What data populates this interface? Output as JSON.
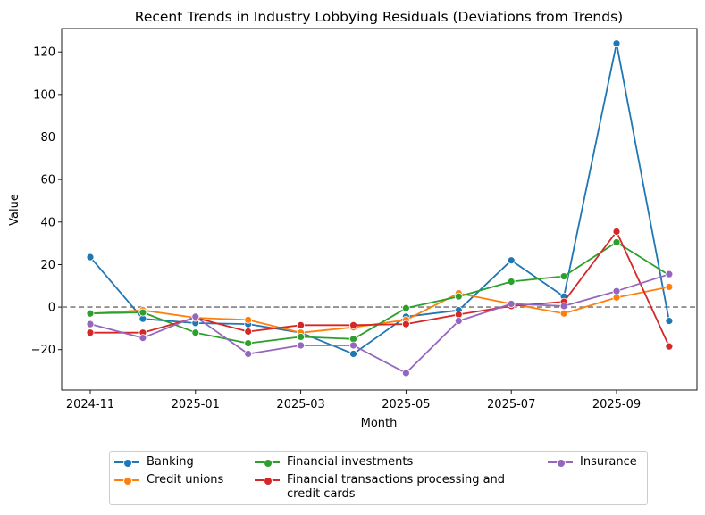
{
  "chart_data": {
    "type": "line",
    "title": "Recent Trends in Industry Lobbying Residuals (Deviations from Trends)",
    "xlabel": "Month",
    "ylabel": "Value",
    "x": [
      "2024-11",
      "2024-12",
      "2025-01",
      "2025-02",
      "2025-03",
      "2025-04",
      "2025-05",
      "2025-06",
      "2025-07",
      "2025-08",
      "2025-09",
      "2025-10"
    ],
    "x_tick_labels": [
      "2024-11",
      "2025-01",
      "2025-03",
      "2025-05",
      "2025-07",
      "2025-09"
    ],
    "y_ticks": [
      -20,
      0,
      20,
      40,
      60,
      80,
      100,
      120
    ],
    "y_tick_labels": [
      "−20",
      "0",
      "20",
      "40",
      "60",
      "80",
      "100",
      "120"
    ],
    "ylim": [
      -39,
      131
    ],
    "reference_line": 0,
    "grid": false,
    "legend_placement": "below plot, 3 columns",
    "series": [
      {
        "name": "Banking",
        "color": "#1f77b4",
        "values": [
          23.5,
          -5.5,
          -7.5,
          -8,
          -12,
          -22,
          -4.5,
          -1.5,
          22,
          5,
          124,
          -6.5
        ]
      },
      {
        "name": "Credit unions",
        "color": "#ff7f0e",
        "values": [
          -3,
          -1.5,
          -5,
          -6,
          -12,
          -9.5,
          -6,
          6.5,
          1.5,
          -3,
          4.5,
          9.5
        ]
      },
      {
        "name": "Financial investments",
        "color": "#2ca02c",
        "values": [
          -3,
          -2.5,
          -12,
          -17,
          -14,
          -15,
          -0.5,
          5,
          12,
          14.5,
          30.5,
          15
        ]
      },
      {
        "name": "Financial transactions processing and credit cards",
        "color": "#d62728",
        "values": [
          -12,
          -12,
          -5,
          -11.5,
          -8.5,
          -8.5,
          -8,
          -3.5,
          0.5,
          2.5,
          35.5,
          -18.5
        ]
      },
      {
        "name": "Insurance",
        "color": "#9467bd",
        "values": [
          -8,
          -14.5,
          -4.5,
          -22,
          -18,
          -18,
          -31,
          -6.5,
          1.5,
          0.5,
          7.5,
          15.5
        ]
      }
    ]
  }
}
